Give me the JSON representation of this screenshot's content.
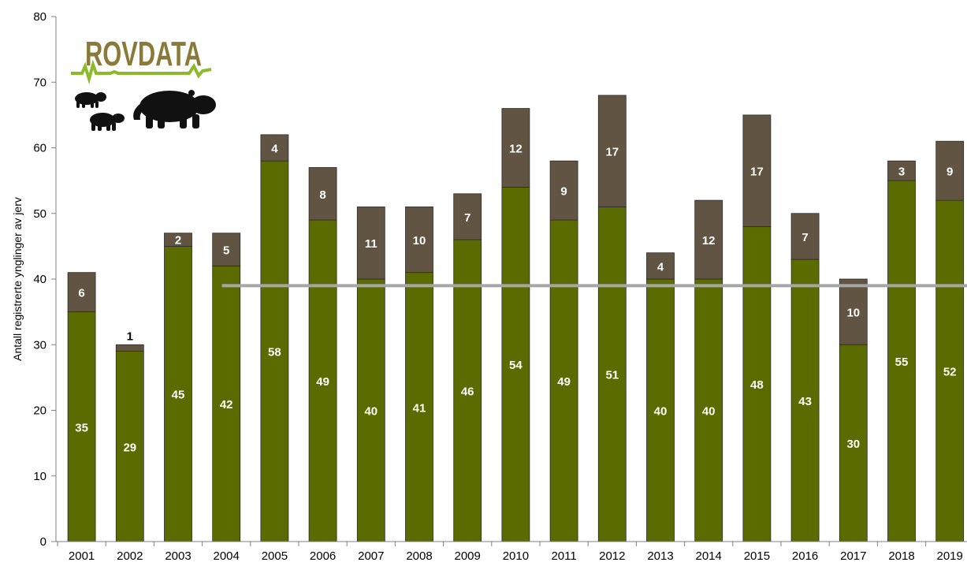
{
  "logo": {
    "text": "ROVDATA",
    "color": "#8a7a3a",
    "line_color": "#8dba2a"
  },
  "colors": {
    "green": "#5c6b00",
    "brown": "#625442",
    "reference_line": "#a6a6a6"
  },
  "chart_data": {
    "type": "bar",
    "stacked": true,
    "title": "",
    "xlabel": "",
    "ylabel": "Antall registrerte ynglinger  av jerv",
    "ylim": [
      0,
      80
    ],
    "yticks": [
      0,
      10,
      20,
      30,
      40,
      50,
      60,
      70,
      80
    ],
    "categories": [
      "2001",
      "2002",
      "2003",
      "2004",
      "2005",
      "2006",
      "2007",
      "2008",
      "2009",
      "2010",
      "2011",
      "2012",
      "2013",
      "2014",
      "2015",
      "2016",
      "2017",
      "2018",
      "2019"
    ],
    "series": [
      {
        "color": "#5c6b00",
        "values": [
          35,
          29,
          45,
          42,
          58,
          49,
          40,
          41,
          46,
          54,
          49,
          51,
          40,
          40,
          48,
          43,
          30,
          55,
          52
        ]
      },
      {
        "color": "#625442",
        "values": [
          6,
          1,
          2,
          5,
          4,
          8,
          11,
          10,
          7,
          12,
          9,
          17,
          4,
          12,
          17,
          7,
          10,
          3,
          9
        ]
      }
    ],
    "reference_line": {
      "y": 39,
      "from_category": "2004",
      "to_category": "2019"
    },
    "grid": false,
    "legend": "none"
  }
}
